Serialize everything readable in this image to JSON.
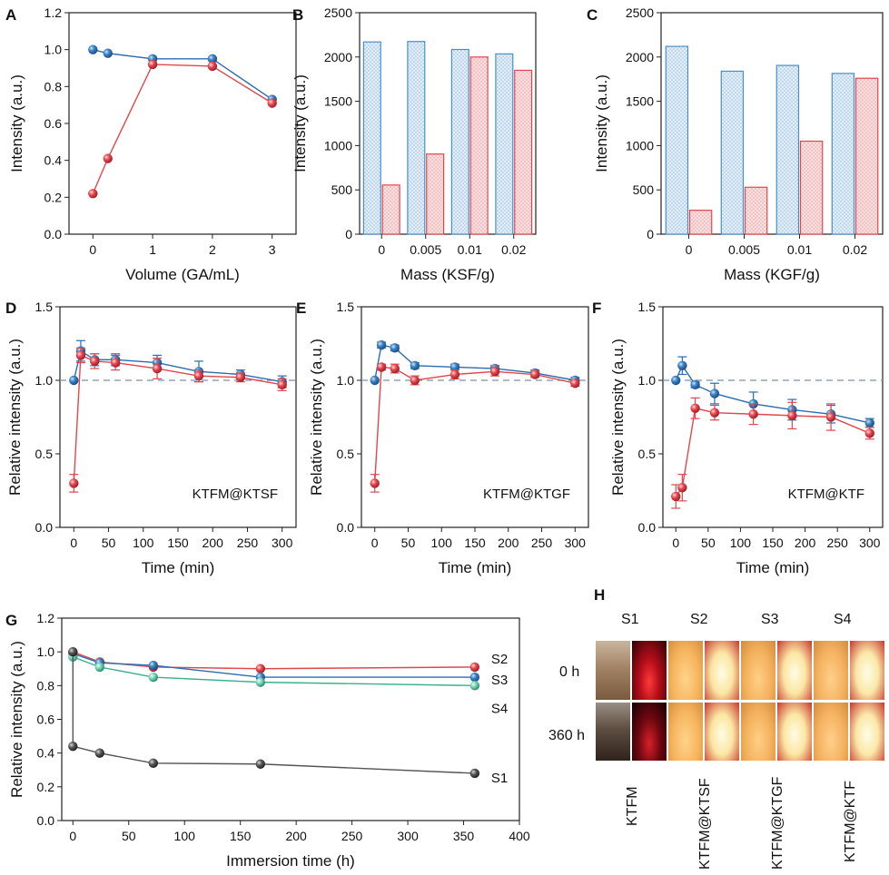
{
  "panels": {
    "A": {
      "letter": "A",
      "chart_data": {
        "type": "line",
        "xlabel": "Volume (GA/mL)",
        "ylabel": "Intensity (a.u.)",
        "xlim": [
          -0.4,
          3.4
        ],
        "ylim": [
          0,
          1.2
        ],
        "xticks": [
          0,
          1,
          2,
          3
        ],
        "yticks": [
          0.0,
          0.2,
          0.4,
          0.6,
          0.8,
          1.0,
          1.2
        ],
        "series": [
          {
            "color": "#2b6cb0",
            "x": [
              0,
              0.25,
              1,
              2,
              3
            ],
            "y": [
              1.0,
              0.98,
              0.95,
              0.95,
              0.73
            ]
          },
          {
            "color": "#e0474c",
            "x": [
              0,
              0.25,
              1,
              2,
              3
            ],
            "y": [
              0.22,
              0.41,
              0.92,
              0.91,
              0.71
            ]
          }
        ]
      }
    },
    "B": {
      "letter": "B",
      "chart_data": {
        "type": "bar",
        "xlabel": "Mass (KSF/g)",
        "ylabel": "Intensity (a.u.)",
        "ylim": [
          0,
          2500
        ],
        "yticks": [
          0,
          500,
          1000,
          1500,
          2000,
          2500
        ],
        "categories": [
          "0",
          "0.005",
          "0.01",
          "0.02"
        ],
        "series": [
          {
            "color": "#4a90c8",
            "fill": "#dbe9f6",
            "values": [
              2170,
              2175,
              2085,
              2035
            ]
          },
          {
            "color": "#e0474c",
            "fill": "#f9d9da",
            "values": [
              555,
              905,
              2000,
              1850
            ]
          }
        ]
      }
    },
    "C": {
      "letter": "C",
      "chart_data": {
        "type": "bar",
        "xlabel": "Mass (KGF/g)",
        "ylabel": "Intensity (a.u.)",
        "ylim": [
          0,
          2500
        ],
        "yticks": [
          0,
          500,
          1000,
          1500,
          2000,
          2500
        ],
        "categories": [
          "0",
          "0.005",
          "0.01",
          "0.02"
        ],
        "series": [
          {
            "color": "#4a90c8",
            "fill": "#dbe9f6",
            "values": [
              2120,
              1840,
              1905,
              1815
            ]
          },
          {
            "color": "#e0474c",
            "fill": "#f9d9da",
            "values": [
              270,
              530,
              1050,
              1760
            ]
          }
        ]
      }
    },
    "D": {
      "letter": "D",
      "chart_data": {
        "type": "line",
        "xlabel": "Time (min)",
        "ylabel": "Relative intensity (a.u.)",
        "annotation": "KTFM@KTSF",
        "xlim": [
          -20,
          320
        ],
        "ylim": [
          0,
          1.5
        ],
        "xticks": [
          0,
          50,
          100,
          150,
          200,
          250,
          300
        ],
        "yticks": [
          0.0,
          0.5,
          1.0,
          1.5
        ],
        "reference_line": 1.0,
        "series": [
          {
            "color": "#2b6cb0",
            "x": [
              0,
              10,
              30,
              60,
              120,
              180,
              240,
              300
            ],
            "y": [
              1.0,
              1.2,
              1.14,
              1.14,
              1.12,
              1.06,
              1.04,
              0.99
            ],
            "err": [
              0,
              0.07,
              0.04,
              0.04,
              0.05,
              0.07,
              0.03,
              0.04
            ]
          },
          {
            "color": "#e0474c",
            "x": [
              0,
              10,
              30,
              60,
              120,
              180,
              240,
              300
            ],
            "y": [
              0.3,
              1.17,
              1.13,
              1.12,
              1.08,
              1.03,
              1.02,
              0.97
            ],
            "err": [
              0.06,
              0.05,
              0.05,
              0.05,
              0.07,
              0.04,
              0.03,
              0.04
            ]
          }
        ]
      }
    },
    "E": {
      "letter": "E",
      "chart_data": {
        "type": "line",
        "xlabel": "Time (min)",
        "ylabel": "Relative intensity (a.u.)",
        "annotation": "KTFM@KTGF",
        "xlim": [
          -20,
          320
        ],
        "ylim": [
          0,
          1.5
        ],
        "xticks": [
          0,
          50,
          100,
          150,
          200,
          250,
          300
        ],
        "yticks": [
          0.0,
          0.5,
          1.0,
          1.5
        ],
        "reference_line": 1.0,
        "series": [
          {
            "color": "#2b6cb0",
            "x": [
              0,
              10,
              30,
              60,
              120,
              180,
              240,
              300
            ],
            "y": [
              1.0,
              1.24,
              1.22,
              1.1,
              1.09,
              1.08,
              1.05,
              1.0
            ],
            "err": [
              0,
              0.02,
              0.02,
              0.02,
              0.02,
              0.02,
              0.02,
              0.02
            ]
          },
          {
            "color": "#e0474c",
            "x": [
              0,
              10,
              30,
              60,
              120,
              180,
              240,
              300
            ],
            "y": [
              0.3,
              1.09,
              1.08,
              1.0,
              1.04,
              1.06,
              1.04,
              0.98
            ],
            "err": [
              0.06,
              0.02,
              0.03,
              0.03,
              0.03,
              0.03,
              0.02,
              0.02
            ]
          }
        ]
      }
    },
    "F": {
      "letter": "F",
      "chart_data": {
        "type": "line",
        "xlabel": "Time (min)",
        "ylabel": "Relative intensity (a.u.)",
        "annotation": "KTFM@KTF",
        "xlim": [
          -20,
          320
        ],
        "ylim": [
          0,
          1.5
        ],
        "xticks": [
          0,
          50,
          100,
          150,
          200,
          250,
          300
        ],
        "yticks": [
          0.0,
          0.5,
          1.0,
          1.5
        ],
        "reference_line": 1.0,
        "series": [
          {
            "color": "#2b6cb0",
            "x": [
              0,
              10,
              30,
              60,
              120,
              180,
              240,
              300
            ],
            "y": [
              1.0,
              1.1,
              0.97,
              0.91,
              0.84,
              0.8,
              0.77,
              0.71
            ],
            "err": [
              0,
              0.06,
              0.02,
              0.07,
              0.08,
              0.07,
              0.06,
              0.03
            ]
          },
          {
            "color": "#e0474c",
            "x": [
              0,
              10,
              30,
              60,
              120,
              180,
              240,
              300
            ],
            "y": [
              0.21,
              0.27,
              0.81,
              0.78,
              0.77,
              0.76,
              0.75,
              0.64
            ],
            "err": [
              0.08,
              0.09,
              0.07,
              0.05,
              0.07,
              0.09,
              0.09,
              0.04
            ]
          }
        ]
      }
    },
    "G": {
      "letter": "G",
      "chart_data": {
        "type": "line",
        "xlabel": "Immersion time (h)",
        "ylabel": "Relative intensity (a.u.)",
        "xlim": [
          -10,
          400
        ],
        "ylim": [
          0,
          1.2
        ],
        "xticks": [
          0,
          50,
          100,
          150,
          200,
          250,
          300,
          350,
          400
        ],
        "yticks": [
          0.0,
          0.2,
          0.4,
          0.6,
          0.8,
          1.0,
          1.2
        ],
        "series": [
          {
            "name": "S2",
            "color": "#e0474c",
            "x": [
              0,
              24,
              72,
              168,
              360
            ],
            "y": [
              1.0,
              0.94,
              0.91,
              0.9,
              0.91
            ]
          },
          {
            "name": "S3",
            "color": "#2b6cb0",
            "x": [
              0,
              24,
              72,
              168,
              360
            ],
            "y": [
              0.99,
              0.935,
              0.92,
              0.85,
              0.85
            ]
          },
          {
            "name": "S4",
            "color": "#3fae8f",
            "x": [
              0,
              24,
              72,
              168,
              360
            ],
            "y": [
              0.97,
              0.91,
              0.85,
              0.82,
              0.8
            ]
          },
          {
            "name": "S1",
            "color": "#555555",
            "x": [
              0,
              0,
              24,
              72,
              168,
              360
            ],
            "y": [
              1.0,
              0.44,
              0.4,
              0.34,
              0.335,
              0.28
            ]
          }
        ]
      }
    },
    "H": {
      "letter": "H",
      "samples": [
        "S1",
        "S2",
        "S3",
        "S4"
      ],
      "rows": [
        "0 h",
        "360 h"
      ],
      "materials": [
        "KTFM",
        "KTFM@KTSF",
        "KTFM@KTGF",
        "KTFM@KTF"
      ]
    }
  }
}
